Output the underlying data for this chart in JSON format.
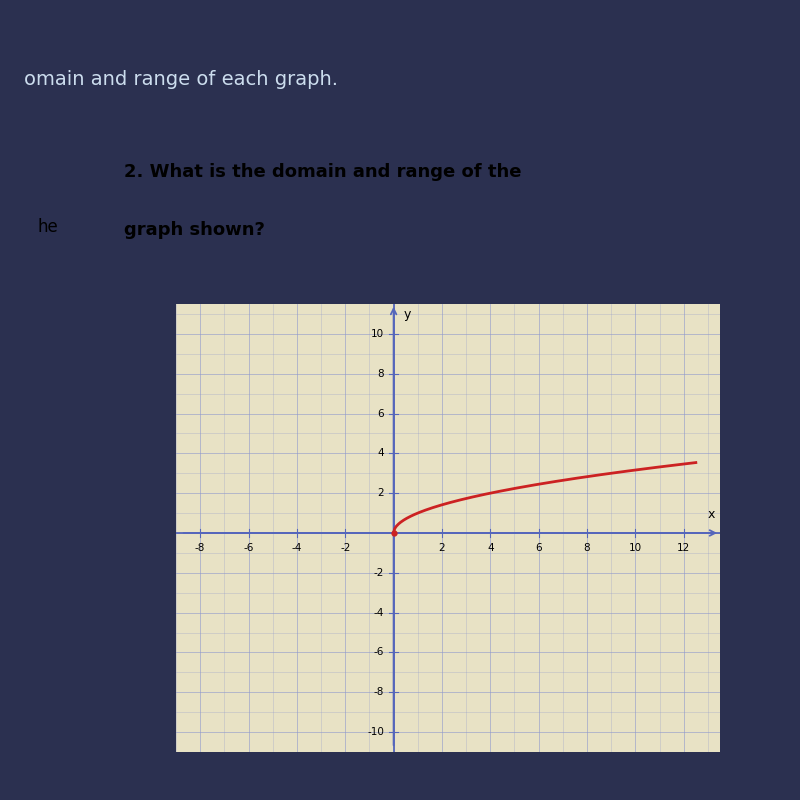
{
  "title_bold": "2. What is the domain and range of the",
  "title_line2": "graph shown?",
  "title_fontsize": 13,
  "outer_bg": "#2b3050",
  "top_bar_bg": "#2b3050",
  "panel_bg": "#ddd8b8",
  "graph_bg": "#e8e2c5",
  "left_strip_bg": "#e0dcc0",
  "border_color": "#8aaa8a",
  "curve_color": "#cc2222",
  "curve_linewidth": 2.0,
  "xlim": [
    -9,
    13.5
  ],
  "ylim": [
    -11,
    11.5
  ],
  "xticks": [
    -8,
    -6,
    -4,
    -2,
    2,
    4,
    6,
    8,
    10,
    12
  ],
  "yticks": [
    -10,
    -8,
    -6,
    -4,
    -2,
    2,
    4,
    6,
    8,
    10
  ],
  "grid_color": "#9099cc",
  "axis_color": "#5566bb",
  "tick_fontsize": 7.5,
  "curve_x_start": 0,
  "curve_x_end": 12.5,
  "top_text": "omain and range of each graph.",
  "left_strip_text": "he",
  "header_text_color": "#ccddee"
}
